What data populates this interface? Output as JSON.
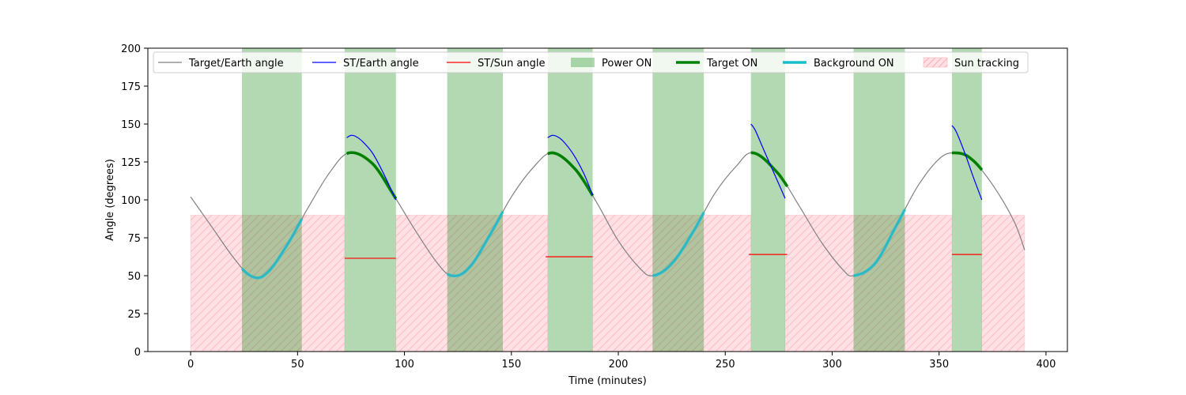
{
  "chart_data": {
    "type": "line",
    "xlabel": "Time (minutes)",
    "ylabel": "Angle (degrees)",
    "xlim": [
      -20,
      410
    ],
    "ylim": [
      0,
      200
    ],
    "x_ticks": [
      0,
      50,
      100,
      150,
      200,
      250,
      300,
      350,
      400
    ],
    "y_ticks": [
      0,
      25,
      50,
      75,
      100,
      125,
      150,
      175,
      200
    ],
    "grid": false,
    "legend_position": "top",
    "legend": [
      {
        "label": "Target/Earth angle",
        "kind": "line",
        "color": "#808080"
      },
      {
        "label": "ST/Earth angle",
        "kind": "line",
        "color": "#0000ff"
      },
      {
        "label": "ST/Sun angle",
        "kind": "line",
        "color": "#ff0000"
      },
      {
        "label": "Power ON",
        "kind": "patch",
        "color": "#008000"
      },
      {
        "label": "Target ON",
        "kind": "thickline",
        "color": "#008000"
      },
      {
        "label": "Background ON",
        "kind": "thickline",
        "color": "#17becf"
      },
      {
        "label": "Sun tracking",
        "kind": "hatch",
        "color": "#ffb6c1"
      }
    ],
    "target_earth_angle": {
      "x": [
        0,
        10,
        20,
        28,
        35,
        45,
        55,
        65,
        74,
        85,
        95,
        105,
        115,
        122,
        130,
        140,
        150,
        160,
        169,
        180,
        190,
        200,
        210,
        216,
        225,
        235,
        245,
        255,
        263,
        275,
        285,
        295,
        305,
        310,
        320,
        330,
        340,
        350,
        357,
        365,
        375,
        385,
        390
      ],
      "y": [
        102,
        82,
        62,
        50,
        51,
        70,
        95,
        118,
        131,
        124,
        103,
        80,
        59,
        50,
        55,
        77,
        102,
        121,
        131,
        120,
        98,
        73,
        55,
        50,
        58,
        79,
        104,
        122,
        131,
        117,
        95,
        72,
        54,
        50,
        58,
        83,
        109,
        127,
        131,
        127,
        110,
        86,
        67
      ]
    },
    "st_earth_angle": [
      {
        "x": [
          73,
          75,
          77,
          80,
          85,
          90,
          96
        ],
        "y": [
          141,
          142.5,
          142,
          139,
          131,
          118,
          100
        ]
      },
      {
        "x": [
          167,
          169,
          171,
          174,
          179,
          184,
          188
        ],
        "y": [
          141,
          142.5,
          142,
          139,
          130,
          117,
          103
        ]
      },
      {
        "x": [
          262,
          264,
          268,
          273,
          278
        ],
        "y": [
          150,
          146,
          133,
          117,
          101
        ]
      },
      {
        "x": [
          356,
          358,
          362,
          366,
          370
        ],
        "y": [
          149,
          145,
          131,
          115,
          100
        ]
      }
    ],
    "st_sun_angle": [
      {
        "x": [
          72,
          96
        ],
        "y": [
          61.5,
          61.5
        ]
      },
      {
        "x": [
          166,
          188
        ],
        "y": [
          62.5,
          62.5
        ]
      },
      {
        "x": [
          261,
          279
        ],
        "y": [
          64,
          64
        ]
      },
      {
        "x": [
          356,
          370
        ],
        "y": [
          64,
          64
        ]
      }
    ],
    "power_on": [
      [
        24,
        52
      ],
      [
        72,
        96
      ],
      [
        120,
        146
      ],
      [
        167,
        188
      ],
      [
        216,
        240
      ],
      [
        262,
        278
      ],
      [
        310,
        334
      ],
      [
        356,
        370
      ]
    ],
    "sun_tracking": [
      [
        0,
        72
      ],
      [
        96,
        167
      ],
      [
        188,
        262
      ],
      [
        278,
        356
      ],
      [
        370,
        390
      ]
    ],
    "sun_tracking_level": 90,
    "target_on_windows": [
      [
        73,
        96
      ],
      [
        167,
        188
      ],
      [
        262,
        279
      ],
      [
        356,
        370
      ]
    ],
    "background_on_windows": [
      [
        24,
        52
      ],
      [
        120,
        146
      ],
      [
        216,
        240
      ],
      [
        310,
        334
      ]
    ]
  }
}
